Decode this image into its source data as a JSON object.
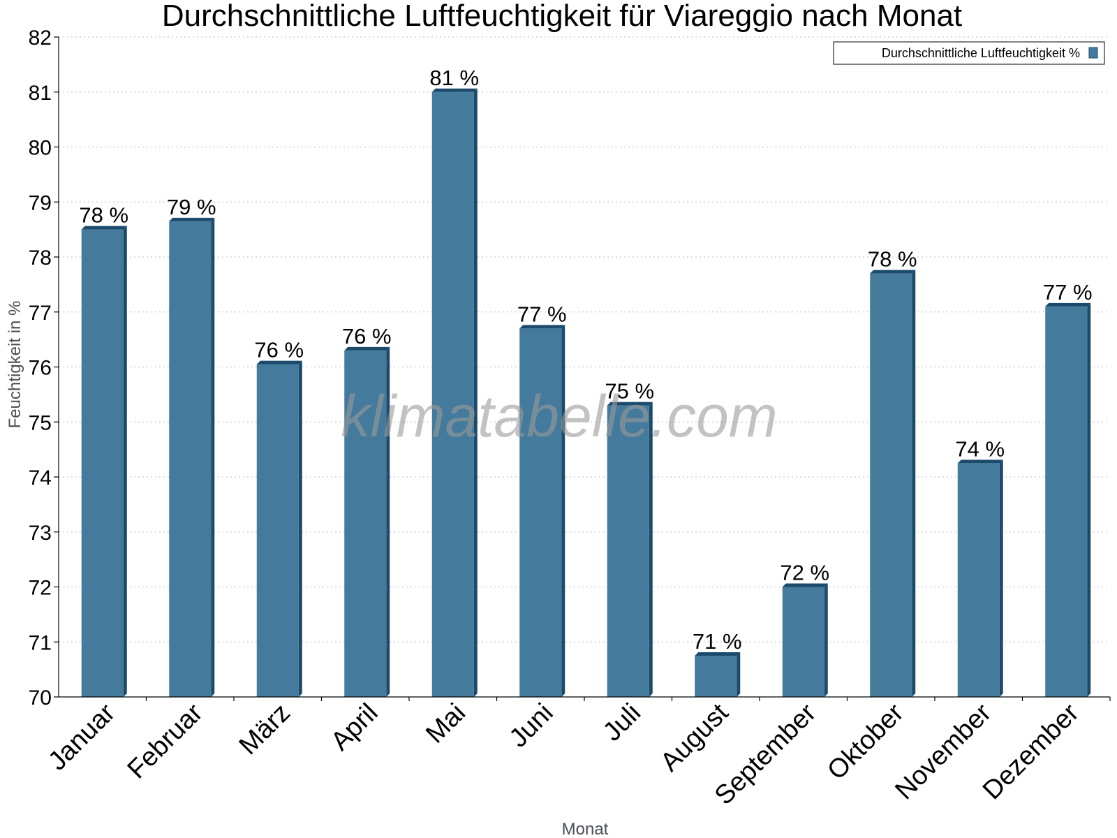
{
  "chart_data": {
    "type": "bar",
    "title": "Durchschnittliche Luftfeuchtigkeit für Viareggio nach Monat",
    "xlabel": "Monat",
    "ylabel": "Feuchtigkeit in %",
    "ylim": [
      70,
      82
    ],
    "yticks": [
      "70",
      "71",
      "72",
      "73",
      "74",
      "75",
      "76",
      "77",
      "78",
      "79",
      "80",
      "81",
      "82"
    ],
    "grid": true,
    "legend_position": "top-right",
    "categories": [
      "Januar",
      "Februar",
      "März",
      "April",
      "Mai",
      "Juni",
      "Juli",
      "August",
      "September",
      "Oktober",
      "November",
      "Dezember"
    ],
    "series": [
      {
        "name": "Durchschnittliche Luftfeuchtigkeit %",
        "values": [
          78.5,
          78.65,
          76.05,
          76.3,
          81.0,
          76.7,
          75.3,
          70.75,
          72.0,
          77.7,
          74.25,
          77.1
        ],
        "labels": [
          "78 %",
          "79 %",
          "76 %",
          "76 %",
          "81 %",
          "77 %",
          "75 %",
          "71 %",
          "72 %",
          "78 %",
          "74 %",
          "77 %"
        ],
        "color": "#447a9c",
        "side_color": "#1b4a6b"
      }
    ],
    "watermark": "klimatabelle.com"
  }
}
